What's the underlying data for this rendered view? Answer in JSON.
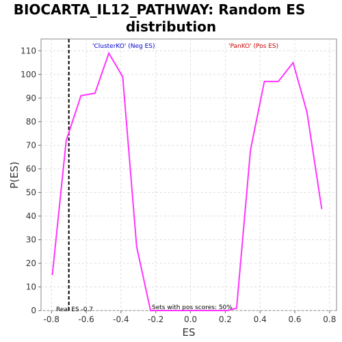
{
  "chart_data": {
    "type": "line",
    "title_lines": [
      "BIOCARTA_IL12_PATHWAY: Random ES",
      "distribution"
    ],
    "xlabel": "ES",
    "ylabel": "P(ES)",
    "xlim": [
      -0.86,
      0.84
    ],
    "ylim": [
      0,
      115
    ],
    "x_ticks": [
      -0.8,
      -0.6,
      -0.4,
      -0.2,
      0.0,
      0.2,
      0.4,
      0.6,
      0.8
    ],
    "x_tick_labels": [
      "-0.8",
      "-0.6",
      "-0.4",
      "-0.2",
      "0.0",
      "0.2",
      "0.4",
      "0.6",
      "0.8"
    ],
    "y_ticks": [
      0,
      10,
      20,
      30,
      40,
      50,
      60,
      70,
      80,
      90,
      100,
      110
    ],
    "y_tick_labels": [
      "0",
      "10",
      "20",
      "30",
      "40",
      "50",
      "60",
      "70",
      "80",
      "90",
      "100",
      "110"
    ],
    "grid": true,
    "series_color": "#ff33ff",
    "x": [
      -0.795,
      -0.715,
      -0.63,
      -0.55,
      -0.47,
      -0.39,
      -0.31,
      -0.23,
      -0.15,
      -0.07,
      0.01,
      0.09,
      0.17,
      0.215,
      0.265,
      0.345,
      0.425,
      0.505,
      0.59,
      0.67,
      0.755
    ],
    "y": [
      15,
      72,
      91,
      92,
      109,
      99,
      27,
      0,
      0,
      0,
      0,
      0,
      0,
      0,
      1,
      68,
      97,
      97,
      105,
      84,
      43
    ],
    "real_es": -0.7,
    "annotations": {
      "neg_label": "'ClusterKO' (Neg ES)",
      "neg_color": "#0000cc",
      "pos_label": "'PanKO' (Pos ES)",
      "pos_color": "#cc0000",
      "real_es_label": "Real ES -0.7",
      "pos_scores_label": "Sets with pos scores: 50%"
    }
  }
}
